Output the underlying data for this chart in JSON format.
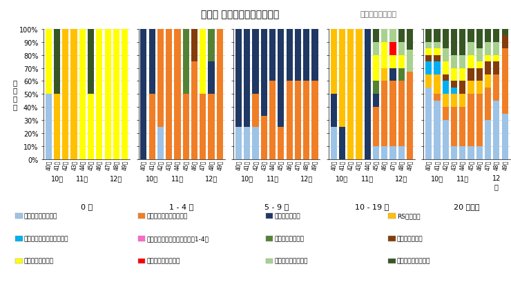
{
  "title": "年齢別 病原体検出割合の推移",
  "title_suffix": "（不検出を除く）",
  "ylabel": "検\n出\n割\n合",
  "weeks": [
    "40",
    "41",
    "42",
    "43",
    "44",
    "45",
    "46",
    "47",
    "48",
    "49"
  ],
  "age_groups": [
    "0 歳",
    "1 - 4 歳",
    "5 - 9 歳",
    "10 - 19 歳",
    "20 歳以上"
  ],
  "pathogens": [
    "新型コロナウイルス",
    "インフルエンザウイルス",
    "ライノウイルス",
    "RSウイルス",
    "ヒトメタニューモウイルス",
    "パラインフルエンザウイルス1-4型",
    "ヒトボカウイルス",
    "アデノウイルス",
    "エンテロウイルス",
    "ヒトパレコウイルス",
    "ヒトコロナウイルス",
    "肺炎マイコプラズマ"
  ],
  "colors": [
    "#9dc3e6",
    "#f07e26",
    "#1f3864",
    "#ffc000",
    "#00b0f0",
    "#ff66cc",
    "#548235",
    "#843c0c",
    "#ffff00",
    "#ff0000",
    "#a9d18e",
    "#375623"
  ],
  "data": {
    "0": {
      "コロナ": [
        0.5,
        0.0,
        0.0,
        0.0,
        0.0,
        0.0,
        0.0,
        0.0,
        0.0,
        0.0
      ],
      "インフル": [
        0.0,
        0.0,
        0.0,
        0.0,
        0.0,
        0.0,
        0.0,
        0.0,
        0.0,
        0.0
      ],
      "ライノ": [
        0.0,
        0.0,
        0.0,
        0.0,
        0.0,
        0.0,
        0.0,
        0.0,
        0.0,
        0.0
      ],
      "RS": [
        0.0,
        0.5,
        1.0,
        1.0,
        0.0,
        0.0,
        0.0,
        0.0,
        0.0,
        0.0
      ],
      "メタニュー": [
        0.0,
        0.0,
        0.0,
        0.0,
        0.0,
        0.0,
        0.0,
        0.0,
        0.0,
        0.0
      ],
      "パライン": [
        0.0,
        0.0,
        0.0,
        0.0,
        0.0,
        0.0,
        0.0,
        0.0,
        0.0,
        0.0
      ],
      "ボカ": [
        0.0,
        0.0,
        0.0,
        0.0,
        0.0,
        0.0,
        0.0,
        0.0,
        0.0,
        0.0
      ],
      "アデノ": [
        0.0,
        0.0,
        0.0,
        0.0,
        0.0,
        0.0,
        0.0,
        0.0,
        0.0,
        0.0
      ],
      "エンテロ": [
        0.5,
        0.0,
        0.0,
        0.0,
        1.0,
        0.5,
        1.0,
        1.0,
        1.0,
        1.0
      ],
      "パレコ": [
        0.0,
        0.0,
        0.0,
        0.0,
        0.0,
        0.0,
        0.0,
        0.0,
        0.0,
        0.0
      ],
      "ヒトコロ": [
        0.0,
        0.0,
        0.0,
        0.0,
        0.0,
        0.0,
        0.0,
        0.0,
        0.0,
        0.0
      ],
      "肺炎マイコ": [
        0.0,
        0.5,
        0.0,
        0.0,
        0.0,
        0.5,
        0.0,
        0.0,
        0.0,
        0.0
      ]
    },
    "1": {
      "コロナ": [
        0.0,
        0.0,
        0.25,
        0.0,
        0.0,
        0.0,
        0.0,
        0.0,
        0.0,
        0.0
      ],
      "インフル": [
        0.0,
        0.5,
        0.75,
        1.0,
        1.0,
        0.5,
        0.75,
        0.5,
        0.5,
        1.0
      ],
      "ライノ": [
        1.0,
        0.5,
        0.0,
        0.0,
        0.0,
        0.0,
        0.0,
        0.0,
        0.25,
        0.0
      ],
      "RS": [
        0.0,
        0.0,
        0.0,
        0.0,
        0.0,
        0.0,
        0.0,
        0.0,
        0.0,
        0.0
      ],
      "メタニュー": [
        0.0,
        0.0,
        0.0,
        0.0,
        0.0,
        0.0,
        0.0,
        0.0,
        0.0,
        0.0
      ],
      "パライン": [
        0.0,
        0.0,
        0.0,
        0.0,
        0.0,
        0.0,
        0.0,
        0.0,
        0.0,
        0.0
      ],
      "ボカ": [
        0.0,
        0.0,
        0.0,
        0.0,
        0.0,
        0.5,
        0.0,
        0.0,
        0.25,
        0.0
      ],
      "アデノ": [
        0.0,
        0.0,
        0.0,
        0.0,
        0.0,
        0.0,
        0.25,
        0.0,
        0.0,
        0.0
      ],
      "エンテロ": [
        0.0,
        0.0,
        0.0,
        0.0,
        0.0,
        0.0,
        0.0,
        0.5,
        0.0,
        0.0
      ],
      "パレコ": [
        0.0,
        0.0,
        0.0,
        0.0,
        0.0,
        0.0,
        0.0,
        0.0,
        0.0,
        0.0
      ],
      "ヒトコロ": [
        0.0,
        0.0,
        0.0,
        0.0,
        0.0,
        0.0,
        0.0,
        0.0,
        0.0,
        0.0
      ],
      "肺炎マイコ": [
        0.0,
        0.0,
        0.0,
        0.0,
        0.0,
        0.0,
        0.0,
        0.0,
        0.0,
        0.0
      ]
    },
    "2": {
      "コロナ": [
        0.25,
        0.25,
        0.25,
        0.0,
        0.0,
        0.0,
        0.0,
        0.0,
        0.0,
        0.0
      ],
      "インフル": [
        0.0,
        0.0,
        0.25,
        0.33,
        0.6,
        0.25,
        0.6,
        0.6,
        0.6,
        0.6
      ],
      "ライノ": [
        0.75,
        0.75,
        0.5,
        0.67,
        0.4,
        0.75,
        0.4,
        0.4,
        0.4,
        0.4
      ],
      "RS": [
        0.0,
        0.0,
        0.0,
        0.0,
        0.0,
        0.0,
        0.0,
        0.0,
        0.0,
        0.0
      ],
      "メタニュー": [
        0.0,
        0.0,
        0.0,
        0.0,
        0.0,
        0.0,
        0.0,
        0.0,
        0.0,
        0.0
      ],
      "パライン": [
        0.0,
        0.0,
        0.0,
        0.0,
        0.0,
        0.0,
        0.0,
        0.0,
        0.0,
        0.0
      ],
      "ボカ": [
        0.0,
        0.0,
        0.0,
        0.0,
        0.0,
        0.0,
        0.0,
        0.0,
        0.0,
        0.0
      ],
      "アデノ": [
        0.0,
        0.0,
        0.0,
        0.0,
        0.0,
        0.0,
        0.0,
        0.0,
        0.0,
        0.0
      ],
      "エンテロ": [
        0.0,
        0.0,
        0.0,
        0.0,
        0.0,
        0.0,
        0.0,
        0.0,
        0.0,
        0.0
      ],
      "パレコ": [
        0.0,
        0.0,
        0.0,
        0.0,
        0.0,
        0.0,
        0.0,
        0.0,
        0.0,
        0.0
      ],
      "ヒトコロ": [
        0.0,
        0.0,
        0.0,
        0.0,
        0.0,
        0.0,
        0.0,
        0.0,
        0.0,
        0.0
      ],
      "肺炎マイコ": [
        0.0,
        0.0,
        0.0,
        0.0,
        0.0,
        0.0,
        0.0,
        0.0,
        0.0,
        0.0
      ]
    },
    "3": {
      "コロナ": [
        0.25,
        0.0,
        0.0,
        0.0,
        0.0,
        0.1,
        0.1,
        0.1,
        0.1,
        0.0
      ],
      "インフル": [
        0.0,
        0.0,
        0.0,
        0.0,
        0.0,
        0.3,
        0.5,
        0.5,
        0.5,
        0.67
      ],
      "ライノ": [
        0.25,
        0.25,
        0.0,
        0.0,
        1.0,
        0.1,
        0.0,
        0.1,
        0.0,
        0.0
      ],
      "RS": [
        0.5,
        0.75,
        1.0,
        1.0,
        0.0,
        0.0,
        0.1,
        0.0,
        0.0,
        0.0
      ],
      "メタニュー": [
        0.0,
        0.0,
        0.0,
        0.0,
        0.0,
        0.0,
        0.0,
        0.0,
        0.0,
        0.0
      ],
      "パライン": [
        0.0,
        0.0,
        0.0,
        0.0,
        0.0,
        0.0,
        0.0,
        0.0,
        0.0,
        0.0
      ],
      "ボカ": [
        0.0,
        0.0,
        0.0,
        0.0,
        0.0,
        0.1,
        0.0,
        0.0,
        0.1,
        0.0
      ],
      "アデノ": [
        0.0,
        0.0,
        0.0,
        0.0,
        0.0,
        0.0,
        0.0,
        0.0,
        0.0,
        0.0
      ],
      "エンテロ": [
        0.0,
        0.0,
        0.0,
        0.0,
        0.0,
        0.2,
        0.2,
        0.1,
        0.1,
        0.0
      ],
      "パレコ": [
        0.0,
        0.0,
        0.0,
        0.0,
        0.0,
        0.0,
        0.0,
        0.1,
        0.0,
        0.0
      ],
      "ヒトコロ": [
        0.0,
        0.0,
        0.0,
        0.0,
        0.0,
        0.1,
        0.1,
        0.1,
        0.1,
        0.17
      ],
      "肺炎マイコ": [
        0.0,
        0.0,
        0.0,
        0.0,
        0.0,
        0.1,
        0.0,
        0.0,
        0.1,
        0.17
      ]
    },
    "4": {
      "コロナ": [
        0.55,
        0.45,
        0.3,
        0.1,
        0.1,
        0.1,
        0.1,
        0.3,
        0.45,
        0.35
      ],
      "インフル": [
        0.0,
        0.05,
        0.1,
        0.3,
        0.3,
        0.4,
        0.4,
        0.25,
        0.2,
        0.5
      ],
      "ライノ": [
        0.0,
        0.0,
        0.0,
        0.0,
        0.0,
        0.0,
        0.0,
        0.0,
        0.0,
        0.0
      ],
      "RS": [
        0.1,
        0.15,
        0.1,
        0.1,
        0.1,
        0.1,
        0.1,
        0.1,
        0.0,
        0.0
      ],
      "メタニュー": [
        0.1,
        0.1,
        0.1,
        0.05,
        0.0,
        0.0,
        0.0,
        0.0,
        0.0,
        0.0
      ],
      "パライン": [
        0.0,
        0.0,
        0.0,
        0.0,
        0.0,
        0.0,
        0.0,
        0.0,
        0.0,
        0.0
      ],
      "ボカ": [
        0.0,
        0.0,
        0.0,
        0.0,
        0.0,
        0.0,
        0.0,
        0.0,
        0.0,
        0.0
      ],
      "アデノ": [
        0.05,
        0.05,
        0.05,
        0.05,
        0.1,
        0.1,
        0.1,
        0.1,
        0.1,
        0.1
      ],
      "エンテロ": [
        0.05,
        0.05,
        0.1,
        0.1,
        0.1,
        0.1,
        0.05,
        0.05,
        0.05,
        0.0
      ],
      "パレコ": [
        0.0,
        0.0,
        0.0,
        0.0,
        0.0,
        0.0,
        0.0,
        0.0,
        0.0,
        0.0
      ],
      "ヒトコロ": [
        0.05,
        0.05,
        0.1,
        0.1,
        0.1,
        0.1,
        0.1,
        0.1,
        0.1,
        0.0
      ],
      "肺炎マイコ": [
        0.1,
        0.1,
        0.15,
        0.2,
        0.2,
        0.1,
        0.15,
        0.1,
        0.1,
        0.05
      ]
    }
  }
}
